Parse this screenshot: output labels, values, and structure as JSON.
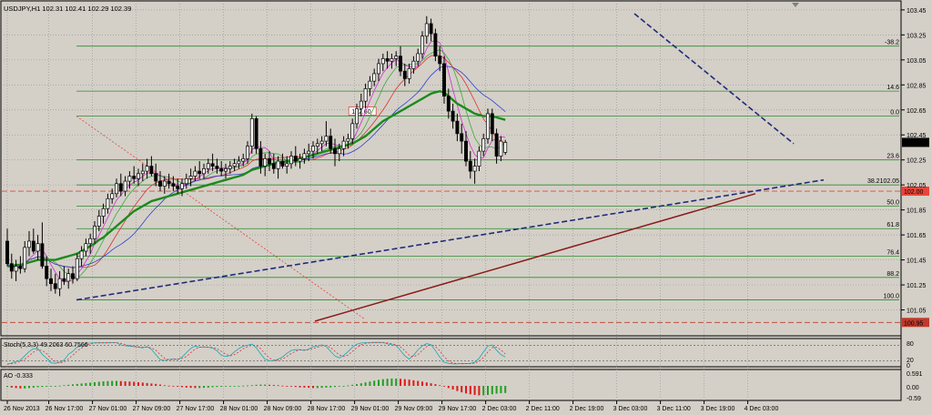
{
  "chart_data": {
    "type": "candlestick",
    "title": "USDJPY,H1  102.31 102.41 102.29 102.39",
    "current_price": 102.39,
    "current_price_label": "102.39",
    "price_axis": {
      "ylim": [
        100.85,
        103.5
      ],
      "ticks": [
        "103.45",
        "103.25",
        "103.05",
        "102.85",
        "102.65",
        "102.45",
        "102.25",
        "102.05",
        "101.85",
        "101.65",
        "101.45",
        "101.25",
        "101.05"
      ],
      "tick_values": [
        103.45,
        103.25,
        103.05,
        102.85,
        102.65,
        102.45,
        102.25,
        102.05,
        101.85,
        101.65,
        101.45,
        101.25,
        101.05
      ]
    },
    "time_axis": {
      "ticks": [
        "26 Nov 2013",
        "26 Nov 17:00",
        "27 Nov 01:00",
        "27 Nov 09:00",
        "27 Nov 17:00",
        "28 Nov 01:00",
        "28 Nov 09:00",
        "28 Nov 17:00",
        "29 Nov 01:00",
        "29 Nov 09:00",
        "29 Nov 17:00",
        "2 Dec 03:00",
        "2 Dec 11:00",
        "2 Dec 19:00",
        "3 Dec 03:00",
        "3 Dec 11:00",
        "3 Dec 19:00",
        "4 Dec 03:00"
      ],
      "tick_index": [
        0,
        9.5,
        19.5,
        29.5,
        39.5,
        49.5,
        59.5,
        69.5,
        79.5,
        89.5,
        99.5,
        109.5,
        119.5,
        129.5,
        139.5,
        149.5,
        159.5,
        169.5
      ]
    },
    "fibonacci": {
      "levels": [
        {
          "label": "-38.2",
          "price": 103.16
        },
        {
          "label": "14.6",
          "price": 102.8
        },
        {
          "label": "0.0",
          "price": 102.6
        },
        {
          "label": "23.6",
          "price": 102.25
        },
        {
          "label": "38.2102.05",
          "price": 102.05
        },
        {
          "label": "50.0",
          "price": 101.88
        },
        {
          "label": "61.8",
          "price": 101.7
        },
        {
          "label": "76.4",
          "price": 101.48
        },
        {
          "label": "88.2",
          "price": 101.31
        },
        {
          "label": "100.0",
          "price": 101.13
        }
      ],
      "anchor_label": "102.60"
    },
    "horizontal_lines": [
      {
        "label": "102.00",
        "price": 102.0,
        "color": "#e8453a"
      },
      {
        "label": "100.95",
        "price": 100.95,
        "color": "#c0392b"
      }
    ],
    "candles": [
      [
        101.6,
        101.7,
        101.4,
        101.42
      ],
      [
        101.42,
        101.5,
        101.3,
        101.36
      ],
      [
        101.36,
        101.45,
        101.28,
        101.4
      ],
      [
        101.4,
        101.48,
        101.34,
        101.38
      ],
      [
        101.38,
        101.6,
        101.35,
        101.55
      ],
      [
        101.55,
        101.68,
        101.48,
        101.6
      ],
      [
        101.6,
        101.7,
        101.5,
        101.52
      ],
      [
        101.52,
        101.65,
        101.45,
        101.58
      ],
      [
        101.58,
        101.75,
        101.38,
        101.4
      ],
      [
        101.4,
        101.48,
        101.24,
        101.3
      ],
      [
        101.3,
        101.38,
        101.2,
        101.26
      ],
      [
        101.26,
        101.34,
        101.18,
        101.22
      ],
      [
        101.22,
        101.36,
        101.16,
        101.3
      ],
      [
        101.3,
        101.4,
        101.25,
        101.28
      ],
      [
        101.28,
        101.38,
        101.22,
        101.34
      ],
      [
        101.34,
        101.4,
        101.26,
        101.3
      ],
      [
        101.3,
        101.5,
        101.28,
        101.46
      ],
      [
        101.46,
        101.56,
        101.4,
        101.52
      ],
      [
        101.52,
        101.62,
        101.48,
        101.58
      ],
      [
        101.58,
        101.66,
        101.5,
        101.62
      ],
      [
        101.62,
        101.76,
        101.58,
        101.72
      ],
      [
        101.72,
        101.85,
        101.68,
        101.8
      ],
      [
        101.8,
        101.9,
        101.74,
        101.86
      ],
      [
        101.86,
        101.98,
        101.82,
        101.94
      ],
      [
        101.94,
        102.02,
        101.9,
        101.98
      ],
      [
        101.98,
        102.1,
        101.95,
        102.06
      ],
      [
        102.06,
        102.14,
        101.96,
        102.0
      ],
      [
        102.0,
        102.12,
        101.96,
        102.08
      ],
      [
        102.08,
        102.16,
        102.02,
        102.12
      ],
      [
        102.12,
        102.2,
        102.06,
        102.1
      ],
      [
        102.1,
        102.18,
        102.04,
        102.14
      ],
      [
        102.14,
        102.22,
        102.08,
        102.16
      ],
      [
        102.16,
        102.26,
        102.1,
        102.2
      ],
      [
        102.2,
        102.28,
        102.12,
        102.14
      ],
      [
        102.14,
        102.22,
        102.04,
        102.08
      ],
      [
        102.08,
        102.16,
        102.0,
        102.04
      ],
      [
        102.04,
        102.12,
        101.98,
        102.08
      ],
      [
        102.08,
        102.14,
        102.02,
        102.06
      ],
      [
        102.06,
        102.12,
        102.0,
        102.04
      ],
      [
        102.04,
        102.1,
        101.98,
        102.02
      ],
      [
        102.02,
        102.1,
        101.96,
        102.06
      ],
      [
        102.06,
        102.14,
        102.02,
        102.1
      ],
      [
        102.1,
        102.18,
        102.04,
        102.12
      ],
      [
        102.12,
        102.2,
        102.08,
        102.16
      ],
      [
        102.16,
        102.24,
        102.1,
        102.14
      ],
      [
        102.14,
        102.22,
        102.1,
        102.18
      ],
      [
        102.18,
        102.26,
        102.14,
        102.22
      ],
      [
        102.22,
        102.3,
        102.16,
        102.2
      ],
      [
        102.2,
        102.26,
        102.14,
        102.18
      ],
      [
        102.18,
        102.24,
        102.12,
        102.16
      ],
      [
        102.16,
        102.22,
        102.1,
        102.18
      ],
      [
        102.18,
        102.24,
        102.14,
        102.2
      ],
      [
        102.2,
        102.26,
        102.16,
        102.22
      ],
      [
        102.22,
        102.28,
        102.18,
        102.24
      ],
      [
        102.24,
        102.3,
        102.2,
        102.26
      ],
      [
        102.26,
        102.4,
        102.22,
        102.36
      ],
      [
        102.36,
        102.62,
        102.3,
        102.58
      ],
      [
        102.58,
        102.6,
        102.3,
        102.34
      ],
      [
        102.34,
        102.4,
        102.14,
        102.2
      ],
      [
        102.2,
        102.3,
        102.12,
        102.26
      ],
      [
        102.26,
        102.32,
        102.16,
        102.22
      ],
      [
        102.22,
        102.3,
        102.14,
        102.18
      ],
      [
        102.18,
        102.28,
        102.1,
        102.24
      ],
      [
        102.24,
        102.3,
        102.18,
        102.2
      ],
      [
        102.2,
        102.28,
        102.14,
        102.22
      ],
      [
        102.22,
        102.32,
        102.18,
        102.28
      ],
      [
        102.28,
        102.36,
        102.2,
        102.24
      ],
      [
        102.24,
        102.3,
        102.18,
        102.26
      ],
      [
        102.26,
        102.34,
        102.22,
        102.3
      ],
      [
        102.3,
        102.38,
        102.24,
        102.32
      ],
      [
        102.32,
        102.4,
        102.26,
        102.36
      ],
      [
        102.36,
        102.42,
        102.3,
        102.38
      ],
      [
        102.38,
        102.44,
        102.32,
        102.4
      ],
      [
        102.4,
        102.56,
        102.36,
        102.44
      ],
      [
        102.44,
        102.5,
        102.3,
        102.34
      ],
      [
        102.34,
        102.42,
        102.2,
        102.3
      ],
      [
        102.3,
        102.38,
        102.24,
        102.34
      ],
      [
        102.34,
        102.44,
        102.28,
        102.4
      ],
      [
        102.4,
        102.46,
        102.34,
        102.42
      ],
      [
        102.42,
        102.58,
        102.38,
        102.54
      ],
      [
        102.54,
        102.7,
        102.5,
        102.66
      ],
      [
        102.66,
        102.78,
        102.6,
        102.72
      ],
      [
        102.72,
        102.86,
        102.66,
        102.82
      ],
      [
        102.82,
        102.92,
        102.76,
        102.88
      ],
      [
        102.88,
        102.98,
        102.84,
        102.94
      ],
      [
        102.94,
        103.06,
        102.88,
        103.02
      ],
      [
        103.02,
        103.1,
        102.96,
        103.06
      ],
      [
        103.06,
        103.12,
        102.98,
        103.04
      ],
      [
        103.04,
        103.1,
        102.98,
        103.06
      ],
      [
        103.06,
        103.12,
        103.0,
        103.08
      ],
      [
        103.08,
        103.16,
        102.92,
        102.96
      ],
      [
        102.96,
        103.02,
        102.84,
        102.9
      ],
      [
        102.9,
        103.02,
        102.86,
        102.98
      ],
      [
        102.98,
        103.08,
        102.94,
        103.04
      ],
      [
        103.04,
        103.14,
        103.0,
        103.1
      ],
      [
        103.1,
        103.28,
        103.06,
        103.24
      ],
      [
        103.24,
        103.4,
        103.18,
        103.34
      ],
      [
        103.34,
        103.38,
        103.2,
        103.26
      ],
      [
        103.26,
        103.3,
        103.04,
        103.08
      ],
      [
        103.08,
        103.16,
        102.96,
        103.02
      ],
      [
        103.02,
        103.08,
        102.7,
        102.76
      ],
      [
        102.76,
        102.82,
        102.58,
        102.64
      ],
      [
        102.64,
        102.7,
        102.5,
        102.56
      ],
      [
        102.56,
        102.62,
        102.4,
        102.46
      ],
      [
        102.46,
        102.54,
        102.3,
        102.4
      ],
      [
        102.4,
        102.48,
        102.2,
        102.24
      ],
      [
        102.24,
        102.32,
        102.1,
        102.16
      ],
      [
        102.16,
        102.26,
        102.06,
        102.2
      ],
      [
        102.2,
        102.36,
        102.16,
        102.32
      ],
      [
        102.32,
        102.46,
        102.28,
        102.42
      ],
      [
        102.42,
        102.66,
        102.38,
        102.62
      ],
      [
        102.62,
        102.66,
        102.4,
        102.46
      ],
      [
        102.46,
        102.5,
        102.22,
        102.28
      ],
      [
        102.28,
        102.44,
        102.24,
        102.4
      ],
      [
        102.31,
        102.41,
        102.29,
        102.39
      ]
    ],
    "sma_green": [
      101.4,
      101.4,
      101.41,
      101.41,
      101.42,
      101.43,
      101.44,
      101.45,
      101.45,
      101.45,
      101.45,
      101.45,
      101.46,
      101.47,
      101.48,
      101.49,
      101.5,
      101.52,
      101.54,
      101.56,
      101.58,
      101.61,
      101.63,
      101.66,
      101.69,
      101.72,
      101.75,
      101.78,
      101.81,
      101.84,
      101.86,
      101.88,
      101.9,
      101.92,
      101.93,
      101.94,
      101.95,
      101.96,
      101.97,
      101.98,
      101.99,
      102.0,
      102.01,
      102.02,
      102.03,
      102.04,
      102.05,
      102.06,
      102.07,
      102.08,
      102.09,
      102.1,
      102.11,
      102.12,
      102.13,
      102.15,
      102.17,
      102.18,
      102.19,
      102.2,
      102.21,
      102.22,
      102.23,
      102.23,
      102.24,
      102.24,
      102.25,
      102.26,
      102.27,
      102.28,
      102.29,
      102.3,
      102.31,
      102.32,
      102.33,
      102.34,
      102.35,
      102.36,
      102.37,
      102.38,
      102.4,
      102.42,
      102.44,
      102.47,
      102.5,
      102.53,
      102.56,
      102.58,
      102.6,
      102.62,
      102.64,
      102.66,
      102.68,
      102.7,
      102.72,
      102.74,
      102.76,
      102.78,
      102.79,
      102.8,
      102.79,
      102.76,
      102.73,
      102.7,
      102.68,
      102.66,
      102.64,
      102.62,
      102.61,
      102.6,
      102.6,
      102.6,
      102.59,
      102.58,
      102.57
    ],
    "stochastic": {
      "label": "Stoch(5,3,3) 49.2063 60.7566",
      "levels": [
        "80",
        "20",
        "0"
      ]
    },
    "ao": {
      "label": "AO -0.333",
      "ticks": [
        "0.591",
        "0.00",
        "-0.59"
      ],
      "values": [
        -0.05,
        -0.08,
        -0.1,
        -0.12,
        -0.12,
        -0.1,
        -0.08,
        -0.06,
        -0.05,
        -0.04,
        -0.03,
        -0.02,
        0.01,
        0.03,
        0.05,
        0.07,
        0.09,
        0.11,
        0.13,
        0.15,
        0.17,
        0.19,
        0.21,
        0.22,
        0.23,
        0.23,
        0.22,
        0.21,
        0.2,
        0.19,
        0.17,
        0.15,
        0.13,
        0.11,
        0.09,
        0.06,
        0.03,
        0.01,
        -0.02,
        -0.04,
        -0.06,
        -0.08,
        -0.09,
        -0.1,
        -0.1,
        -0.09,
        -0.08,
        -0.06,
        -0.05,
        -0.04,
        -0.03,
        -0.02,
        -0.01,
        0.0,
        0.01,
        0.02,
        0.03,
        0.05,
        0.06,
        0.06,
        0.05,
        0.04,
        0.03,
        0.01,
        -0.01,
        -0.03,
        -0.05,
        -0.07,
        -0.08,
        -0.09,
        -0.1,
        -0.1,
        -0.09,
        -0.08,
        -0.07,
        -0.05,
        -0.03,
        -0.01,
        0.02,
        0.05,
        0.08,
        0.12,
        0.16,
        0.2,
        0.24,
        0.28,
        0.31,
        0.33,
        0.34,
        0.34,
        0.33,
        0.31,
        0.29,
        0.26,
        0.23,
        0.2,
        0.16,
        0.12,
        0.08,
        0.03,
        -0.03,
        -0.1,
        -0.17,
        -0.24,
        -0.3,
        -0.35,
        -0.39,
        -0.42,
        -0.44,
        -0.44,
        -0.42,
        -0.39,
        -0.36,
        -0.34,
        -0.33
      ]
    }
  }
}
